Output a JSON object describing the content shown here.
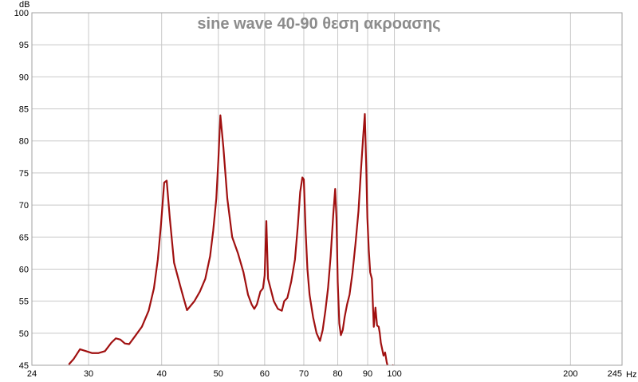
{
  "chart_data": {
    "type": "line",
    "title": "sine wave 40-90 θεση ακροασης",
    "ylabel": "dB",
    "xunit": "Hz",
    "xscale": "log",
    "xlim": [
      24,
      245
    ],
    "ylim": [
      45,
      100
    ],
    "grid": true,
    "x_ticks": [
      24,
      30,
      40,
      50,
      60,
      70,
      80,
      90,
      100,
      200,
      245
    ],
    "x_tick_labels": [
      "24",
      "30",
      "40",
      "50",
      "60",
      "70",
      "80",
      "90",
      "100",
      "200",
      "245"
    ],
    "y_ticks": [
      45,
      50,
      55,
      60,
      65,
      70,
      75,
      80,
      85,
      90,
      95,
      100
    ],
    "line_color": "#a01010",
    "series": [
      {
        "x": [
          27.8,
          28.3,
          29.0,
          29.7,
          30.4,
          31.2,
          32.0,
          32.8,
          33.4,
          34.0,
          34.6,
          35.2,
          36.0,
          37.0,
          38.0,
          38.8,
          39.4,
          39.9,
          40.4,
          40.8,
          41.3,
          42.0,
          43.0,
          43.6,
          44.2,
          45.5,
          46.5,
          47.5,
          48.4,
          49.0,
          49.6,
          50.0,
          50.4,
          51.0,
          51.8,
          52.8,
          54.0,
          55.2,
          56.2,
          57.0,
          57.6,
          58.2,
          59.0,
          59.6,
          60.0,
          60.4,
          60.8,
          61.4,
          62.2,
          63.2,
          64.2,
          64.8,
          65.6,
          66.6,
          67.6,
          68.4,
          69.0,
          69.6,
          70.0,
          70.5,
          71.0,
          71.6,
          72.6,
          73.6,
          74.6,
          75.4,
          76.2,
          77.0,
          77.8,
          78.6,
          79.2,
          79.6,
          80.0,
          80.5,
          81.0,
          81.6,
          82.2,
          83.0,
          83.8,
          84.8,
          85.8,
          86.8,
          87.6,
          88.4,
          89.0,
          89.5,
          89.9,
          90.4,
          90.9,
          91.5,
          92.2,
          92.8,
          93.4,
          94.0,
          94.4,
          94.8,
          95.3,
          95.8,
          96.4,
          97.0,
          97.6,
          98.2,
          98.8,
          99.4,
          99.8,
          100.6,
          101.4
        ],
        "y": [
          45.2,
          46.0,
          47.5,
          47.2,
          46.9,
          46.9,
          47.2,
          48.5,
          49.2,
          49.0,
          48.4,
          48.3,
          49.5,
          51.0,
          53.5,
          57.0,
          61.5,
          67.0,
          73.5,
          73.8,
          68.0,
          61.0,
          57.5,
          55.5,
          53.6,
          55.0,
          56.5,
          58.5,
          62.0,
          66.0,
          71.0,
          77.0,
          84.0,
          79.0,
          71.0,
          65.0,
          62.5,
          59.5,
          56.0,
          54.5,
          53.8,
          54.5,
          56.5,
          57.0,
          59.0,
          67.5,
          58.5,
          57.0,
          55.0,
          53.8,
          53.5,
          55.0,
          55.5,
          58.0,
          61.5,
          67.0,
          72.0,
          74.3,
          74.0,
          66.0,
          60.0,
          56.0,
          52.5,
          50.0,
          48.8,
          50.5,
          53.5,
          57.0,
          62.0,
          68.5,
          72.5,
          68.0,
          58.0,
          51.5,
          49.7,
          50.5,
          52.5,
          54.5,
          56.0,
          59.5,
          64.0,
          69.0,
          75.0,
          80.5,
          84.2,
          76.0,
          68.0,
          63.0,
          59.5,
          58.5,
          51.0,
          54.0,
          51.2,
          51.0,
          50.0,
          48.5,
          47.5,
          46.5,
          47.0,
          45.5,
          44.5,
          43.5,
          44.2,
          45.0,
          44.8,
          43.8,
          43.0
        ]
      }
    ]
  }
}
